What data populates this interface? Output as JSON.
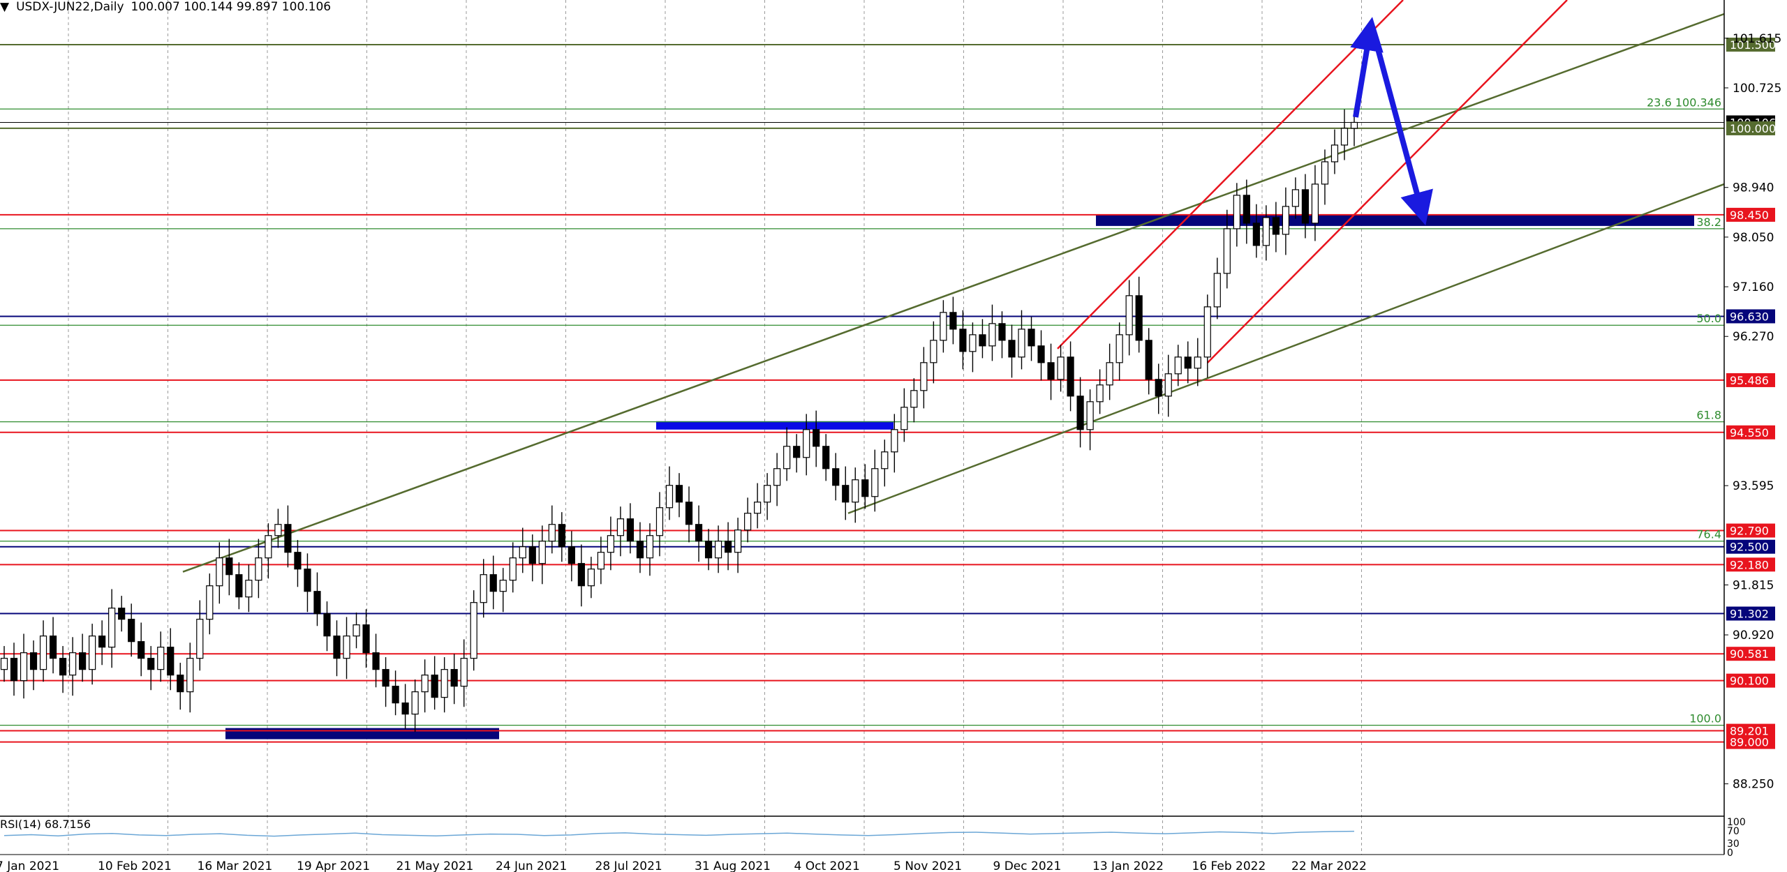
{
  "header": {
    "symbol": "USDX-JUN22,Daily",
    "ohlc": "100.007 100.144 99.897 100.106"
  },
  "rsi": {
    "label": "RSI(14) 68.7156",
    "ticks": [
      "100",
      "70",
      "30",
      "0"
    ],
    "values": [
      55,
      58,
      54,
      60,
      62,
      57,
      55,
      59,
      61,
      56,
      53,
      57,
      60,
      63,
      58,
      56,
      54,
      57,
      60,
      59,
      55,
      57,
      62,
      64,
      60,
      58,
      56,
      59,
      61,
      63,
      60,
      57,
      55,
      58,
      62,
      65,
      66,
      63,
      60,
      62,
      64,
      66,
      63,
      61,
      64,
      67,
      65,
      62,
      66,
      68,
      69
    ]
  },
  "colors": {
    "bull": "#ffffff",
    "bear": "#000000",
    "channel_olive": "#556b2f",
    "channel_red": "#e8141e",
    "arrow": "#1a1adf",
    "zone_navy": "#05057a",
    "zone_blue": "#0a0ae6",
    "fib_green": "#2e8b2e",
    "grid": "#999999"
  },
  "chart_data": {
    "type": "candlestick",
    "x_ticks": [
      "7 Jan 2021",
      "10 Feb 2021",
      "16 Mar 2021",
      "19 Apr 2021",
      "21 May 2021",
      "24 Jun 2021",
      "28 Jul 2021",
      "31 Aug 2021",
      "4 Oct 2021",
      "5 Nov 2021",
      "9 Dec 2021",
      "13 Jan 2022",
      "16 Feb 2022",
      "22 Mar 2022"
    ],
    "y_ticks": [
      "101.615",
      "100.725",
      "98.940",
      "98.050",
      "97.160",
      "96.270",
      "93.595",
      "91.815",
      "90.920",
      "88.250"
    ],
    "ylim": [
      87.67,
      102.3
    ],
    "close": [
      90.5,
      90.1,
      90.6,
      90.3,
      90.9,
      90.5,
      90.2,
      90.6,
      90.3,
      90.9,
      90.7,
      91.4,
      91.2,
      90.8,
      90.5,
      90.3,
      90.7,
      90.2,
      89.9,
      90.5,
      91.2,
      91.8,
      92.3,
      92.0,
      91.6,
      91.9,
      92.3,
      92.7,
      92.9,
      92.4,
      92.1,
      91.7,
      91.3,
      90.9,
      90.5,
      90.9,
      91.1,
      90.6,
      90.3,
      90.0,
      89.7,
      89.5,
      89.9,
      90.2,
      89.8,
      90.3,
      90.0,
      90.5,
      91.5,
      92.0,
      91.7,
      91.9,
      92.3,
      92.5,
      92.2,
      92.6,
      92.9,
      92.5,
      92.2,
      91.8,
      92.1,
      92.4,
      92.7,
      93.0,
      92.6,
      92.3,
      92.7,
      93.2,
      93.6,
      93.3,
      92.9,
      92.6,
      92.3,
      92.6,
      92.4,
      92.8,
      93.1,
      93.3,
      93.6,
      93.9,
      94.3,
      94.1,
      94.6,
      94.3,
      93.9,
      93.6,
      93.3,
      93.7,
      93.4,
      93.9,
      94.2,
      94.6,
      95.0,
      95.3,
      95.8,
      96.2,
      96.7,
      96.4,
      96.0,
      96.3,
      96.1,
      96.5,
      96.2,
      95.9,
      96.4,
      96.1,
      95.8,
      95.5,
      95.9,
      95.2,
      94.6,
      95.1,
      95.4,
      95.8,
      96.3,
      97.0,
      96.2,
      95.5,
      95.2,
      95.6,
      95.9,
      95.7,
      95.9,
      96.8,
      97.4,
      98.2,
      98.8,
      98.3,
      97.9,
      98.4,
      98.1,
      98.6,
      98.9,
      98.3,
      99.0,
      99.4,
      99.7,
      100.0,
      100.106
    ],
    "levels": [
      {
        "value": 101.5,
        "label": "101.500",
        "color": "#556b2f",
        "label_bg": "#556b2f"
      },
      {
        "value": 100.106,
        "label": "100.106",
        "color": "#000000",
        "label_bg": "#000000"
      },
      {
        "value": 100.0,
        "label": "100.000",
        "color": "#556b2f",
        "label_bg": "#556b2f"
      },
      {
        "value": 98.45,
        "label": "98.450",
        "color": "#e8141e",
        "label_bg": "#e8141e"
      },
      {
        "value": 96.63,
        "label": "96.630",
        "color": "#05057a",
        "label_bg": "#05057a"
      },
      {
        "value": 95.486,
        "label": "95.486",
        "color": "#e8141e",
        "label_bg": "#e8141e"
      },
      {
        "value": 94.55,
        "label": "94.550",
        "color": "#e8141e",
        "label_bg": "#e8141e"
      },
      {
        "value": 92.79,
        "label": "92.790",
        "color": "#e8141e",
        "label_bg": "#e8141e"
      },
      {
        "value": 92.5,
        "label": "92.500",
        "color": "#05057a",
        "label_bg": "#05057a"
      },
      {
        "value": 92.18,
        "label": "92.180",
        "color": "#e8141e",
        "label_bg": "#e8141e"
      },
      {
        "value": 91.302,
        "label": "91.302",
        "color": "#05057a",
        "label_bg": "#05057a"
      },
      {
        "value": 90.581,
        "label": "90.581",
        "color": "#e8141e",
        "label_bg": "#e8141e"
      },
      {
        "value": 90.1,
        "label": "90.100",
        "color": "#e8141e",
        "label_bg": "#e8141e"
      },
      {
        "value": 89.201,
        "label": "89.201",
        "color": "#e8141e",
        "label_bg": "#e8141e"
      },
      {
        "value": 89.0,
        "label": "89.000",
        "color": "#e8141e",
        "label_bg": "#e8141e"
      }
    ],
    "fib_levels": [
      {
        "value": 100.346,
        "label": "23.6 100.346"
      },
      {
        "value": 98.2,
        "label": "38.2"
      },
      {
        "value": 96.47,
        "label": "50.0"
      },
      {
        "value": 94.74,
        "label": "61.8"
      },
      {
        "value": 92.6,
        "label": "76.4"
      },
      {
        "value": 89.3,
        "label": "100.0"
      }
    ]
  }
}
